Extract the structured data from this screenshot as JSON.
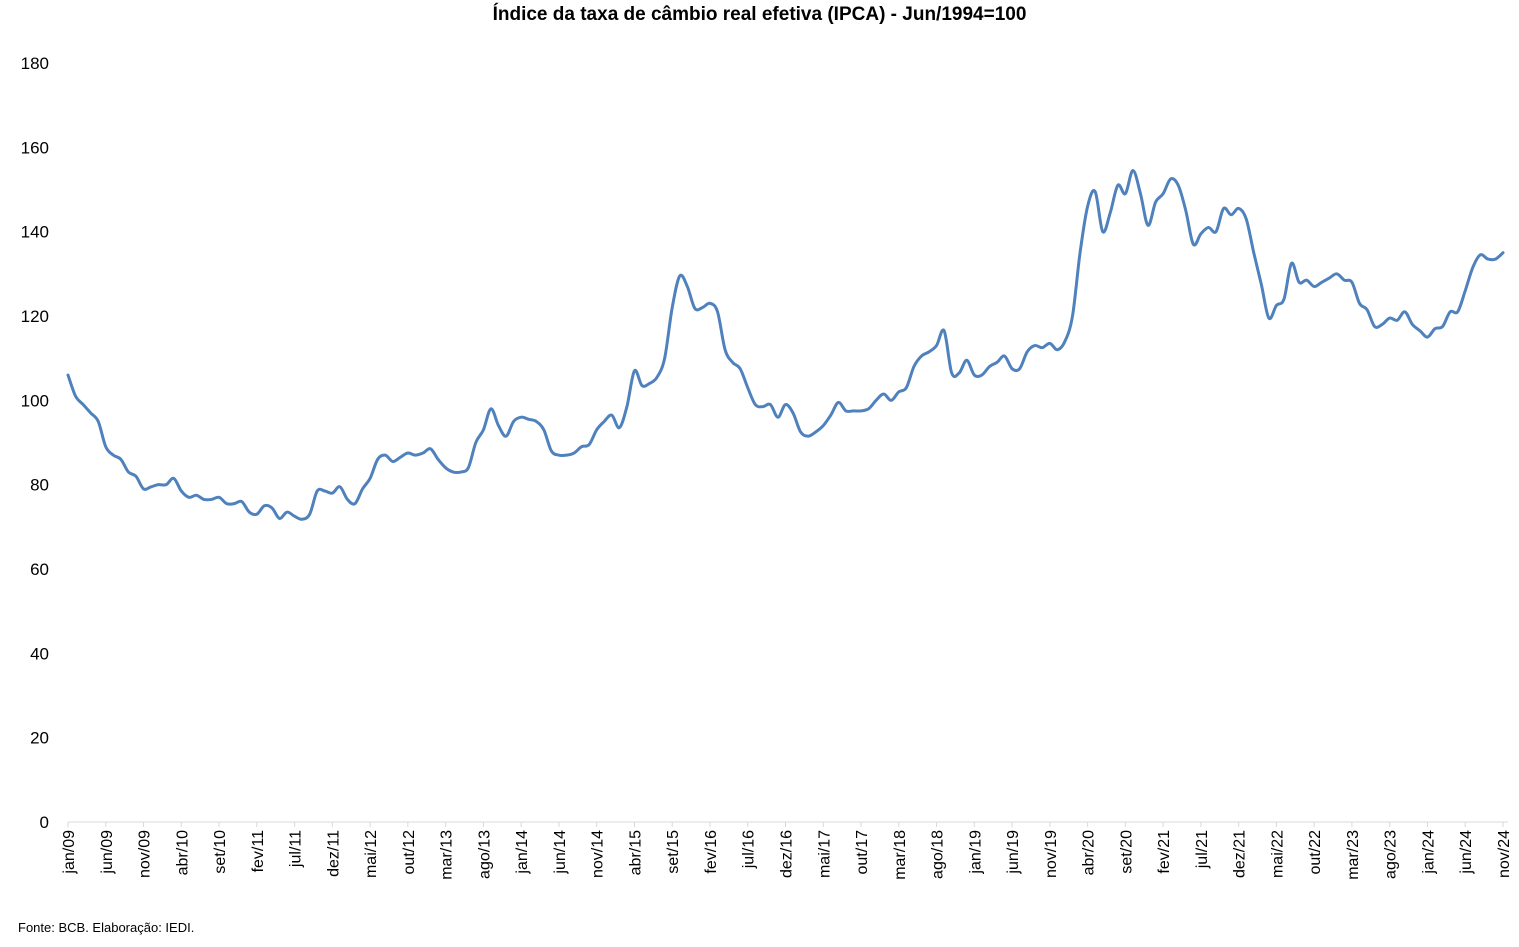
{
  "chart_data": {
    "type": "line",
    "title": "Índice da taxa de câmbio real efetiva (IPCA) - Jun/1994=100",
    "xlabel": "",
    "ylabel": "",
    "ylim": [
      0,
      180
    ],
    "yticks": [
      "0",
      "20",
      "40",
      "60",
      "80",
      "100",
      "120",
      "140",
      "160",
      "180"
    ],
    "grid": false,
    "legend": "none",
    "line_color": "#4F81BD",
    "x_tick_labels": [
      "jan/09",
      "jun/09",
      "nov/09",
      "abr/10",
      "set/10",
      "fev/11",
      "jul/11",
      "dez/11",
      "mai/12",
      "out/12",
      "mar/13",
      "ago/13",
      "jan/14",
      "jun/14",
      "nov/14",
      "abr/15",
      "set/15",
      "fev/16",
      "jul/16",
      "dez/16",
      "mai/17",
      "out/17",
      "mar/18",
      "ago/18",
      "jan/19",
      "jun/19",
      "nov/19",
      "abr/20",
      "set/20",
      "fev/21",
      "jul/21",
      "dez/21",
      "mai/22",
      "out/22",
      "mar/23",
      "ago/23",
      "jan/24",
      "jun/24",
      "nov/24"
    ],
    "start_month": "jan/09",
    "series": [
      {
        "values": [
          106,
          101,
          99,
          97,
          95,
          89,
          87,
          86,
          83,
          82,
          79,
          79.5,
          80,
          80,
          81.5,
          78.5,
          77,
          77.5,
          76.5,
          76.5,
          77,
          75.5,
          75.5,
          76,
          73.5,
          73,
          75,
          74.5,
          72,
          73.5,
          72.5,
          71.8,
          73,
          78.5,
          78.5,
          78,
          79.5,
          76.5,
          75.5,
          79,
          81.5,
          86,
          87,
          85.5,
          86.5,
          87.5,
          87,
          87.5,
          88.5,
          86,
          84,
          83,
          83,
          84,
          90,
          93,
          98,
          94,
          91.5,
          95,
          96,
          95.5,
          95,
          93,
          88,
          87,
          87,
          87.5,
          89,
          89.5,
          93,
          95,
          96.5,
          93.5,
          98.5,
          107,
          103.5,
          104,
          105.5,
          110,
          122,
          129.5,
          127,
          121.8,
          122,
          123,
          121,
          112,
          109,
          107.5,
          103,
          99,
          98.5,
          99,
          96,
          99,
          97,
          92.5,
          91.5,
          92.5,
          94,
          96.5,
          99.5,
          97.5,
          97.5,
          97.5,
          98,
          100,
          101.5,
          100,
          102,
          103,
          108,
          110.5,
          111.5,
          113,
          116.5,
          106.5,
          106.5,
          109.5,
          106,
          106,
          108,
          109,
          110.5,
          107.5,
          107.5,
          111.5,
          113,
          112.5,
          113.5,
          112,
          114,
          120,
          135,
          146,
          149.5,
          140,
          144.5,
          151,
          149,
          154.5,
          149,
          141.5,
          147,
          149,
          152.5,
          151,
          145,
          137,
          139.5,
          141,
          140,
          145.5,
          144,
          145.5,
          143,
          135,
          127.5,
          119.5,
          122.5,
          124,
          132.5,
          128,
          128.5,
          127,
          128,
          129,
          130,
          128.5,
          128,
          123,
          121.5,
          117.5,
          118,
          119.5,
          119,
          121,
          118,
          116.5,
          115,
          117,
          117.5,
          121,
          121,
          126,
          131.5,
          134.5,
          133.5,
          133.5,
          135
        ]
      }
    ]
  },
  "footer": {
    "source": "Fonte: BCB. Elaboração: IEDI."
  }
}
